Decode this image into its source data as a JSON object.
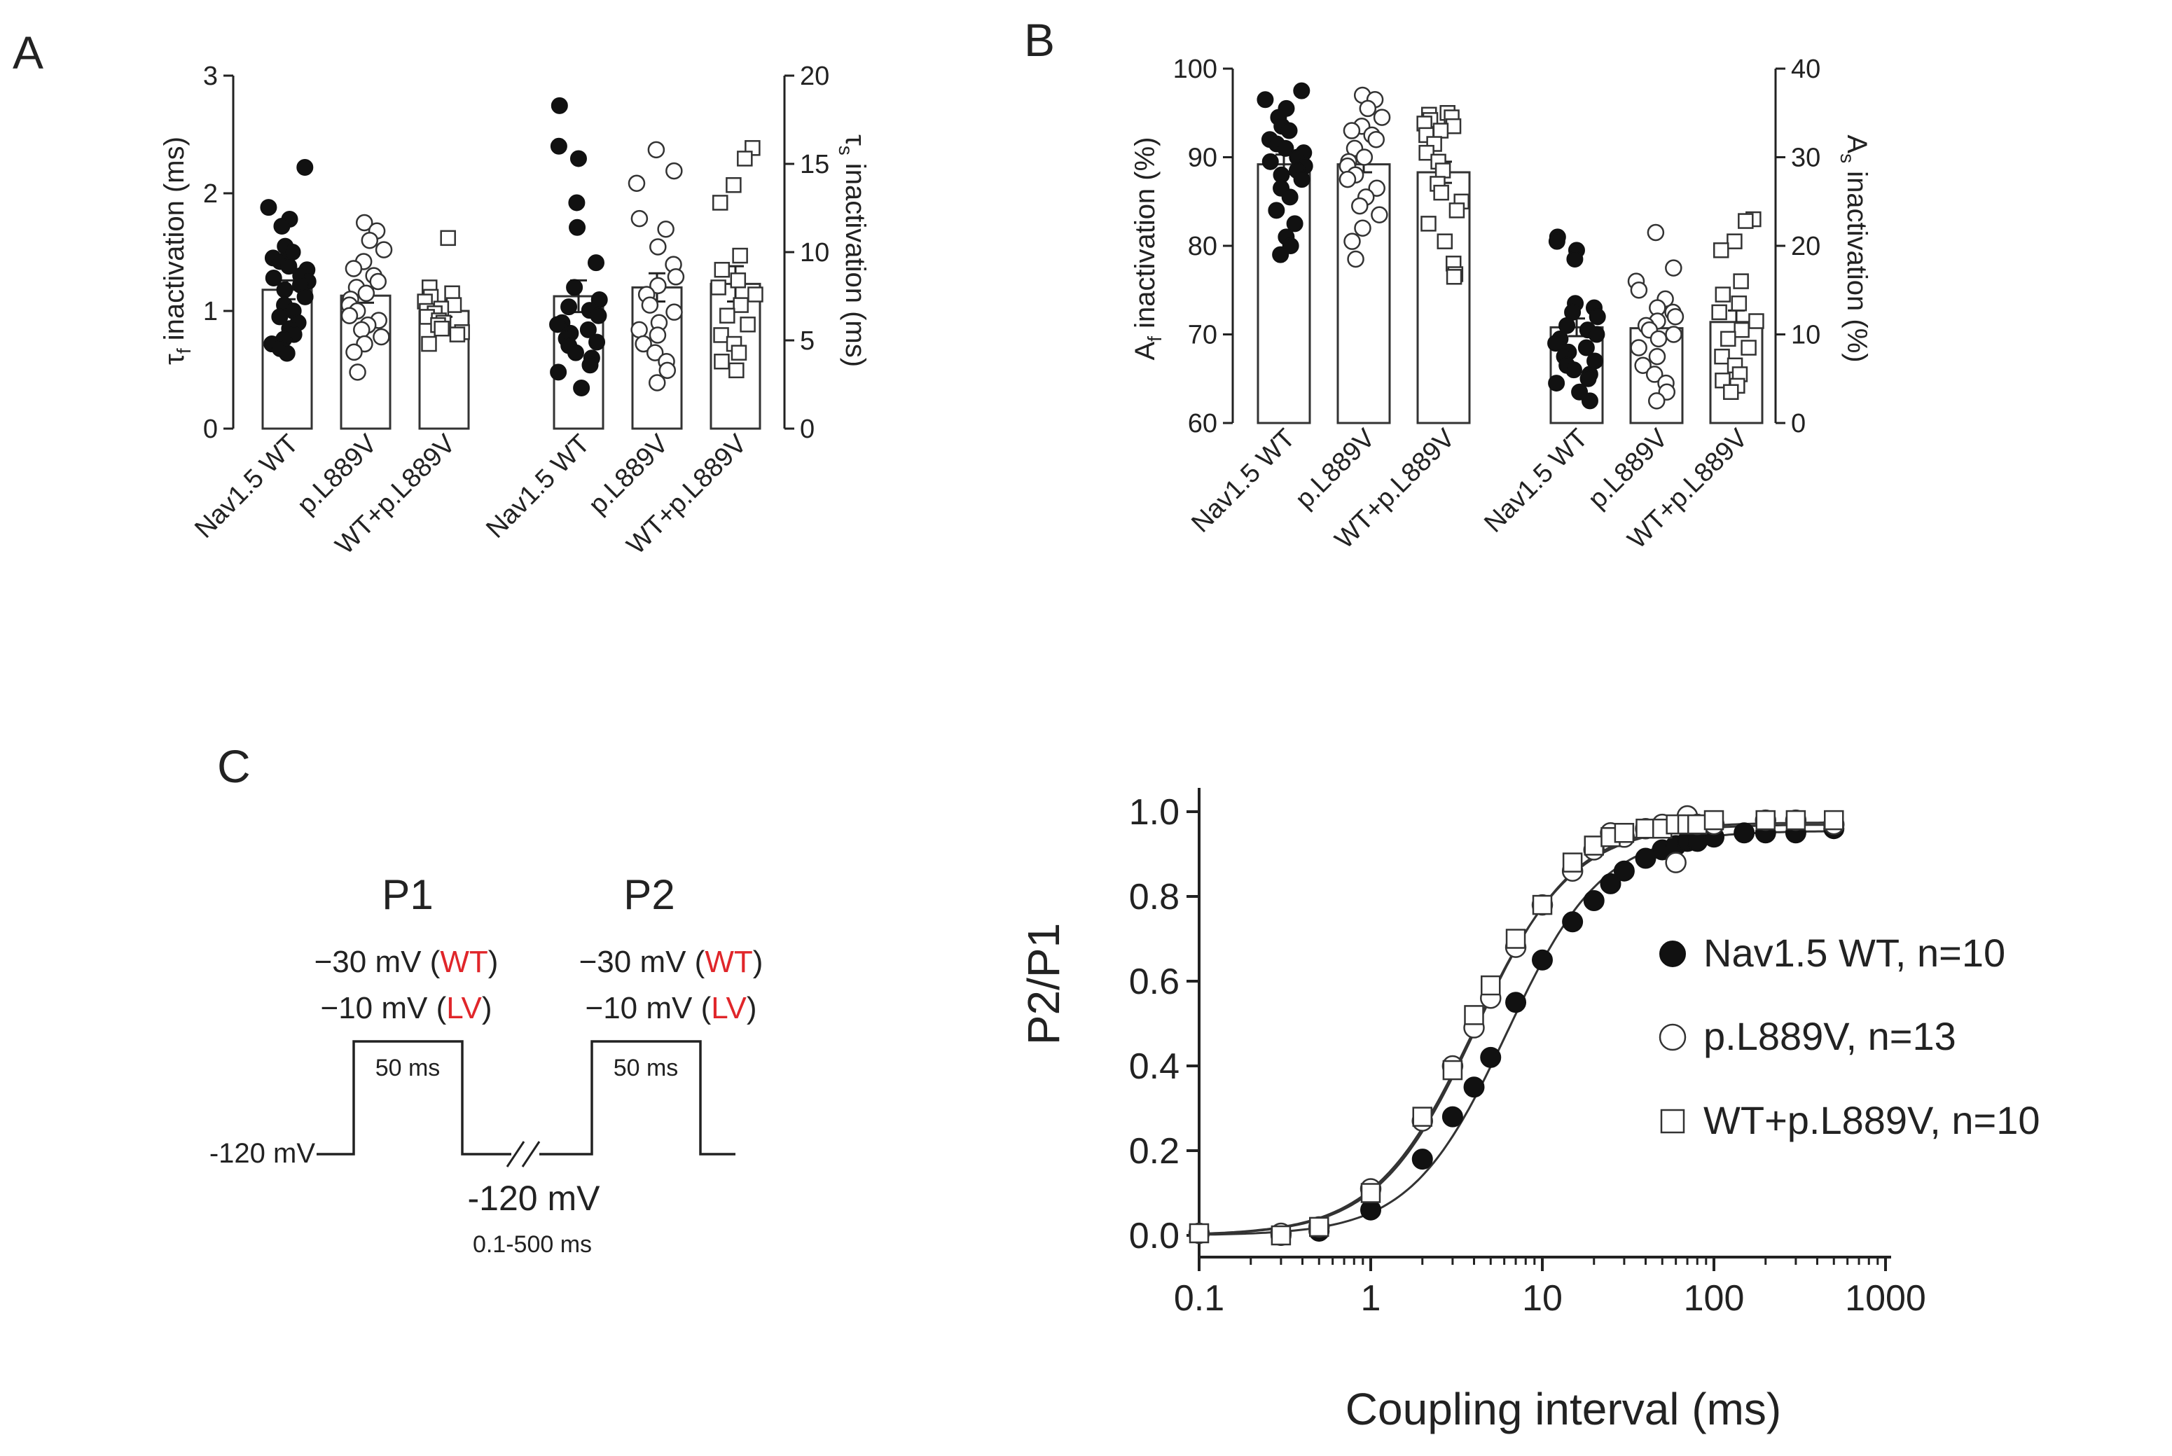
{
  "panels": {
    "A": {
      "letter": "A",
      "left_axis": {
        "label_main": "τ",
        "label_sub": "f",
        "label_rest": " inactivation (ms)",
        "ticks": [
          "0",
          "1",
          "2",
          "3"
        ],
        "range": [
          0,
          3
        ]
      },
      "right_axis": {
        "label_main": "τ",
        "label_sub": "s",
        "label_rest": " inactivation (ms)",
        "ticks": [
          "0",
          "5",
          "10",
          "15",
          "20"
        ],
        "range": [
          0,
          20
        ]
      },
      "categories": [
        "Nav1.5 WT",
        "p.L889V",
        "WT+p.L889V",
        "Nav1.5 WT",
        "p.L889V",
        "WT+p.L889V"
      ]
    },
    "B": {
      "letter": "B",
      "left_axis": {
        "label_main": "A",
        "label_sub": "f",
        "label_rest": " inactivation (%)",
        "ticks": [
          "60",
          "70",
          "80",
          "90",
          "100"
        ],
        "range": [
          60,
          100
        ]
      },
      "right_axis": {
        "label_main": "A",
        "label_sub": "s",
        "label_rest": " inactivation (%)",
        "ticks": [
          "0",
          "10",
          "20",
          "30",
          "40"
        ],
        "range": [
          0,
          40
        ]
      },
      "categories": [
        "Nav1.5 WT",
        "p.L889V",
        "WT+p.L889V",
        "Nav1.5 WT",
        "p.L889V",
        "WT+p.L889V"
      ]
    },
    "C": {
      "letter": "C",
      "protocol": {
        "p1_label": "P1",
        "p2_label": "P2",
        "p1_line1_prefix": "−30 mV (",
        "p1_line1_tag": "WT",
        "p1_line1_suffix": ")",
        "p1_line2_prefix": "−10 mV (",
        "p1_line2_tag": "LV",
        "p1_line2_suffix": ")",
        "p2_line1_prefix": "−30 mV (",
        "p2_line1_tag": "WT",
        "p2_line1_suffix": ")",
        "p2_line2_prefix": "−10 mV (",
        "p2_line2_tag": "LV",
        "p2_line2_suffix": ")",
        "pulse1_duration": "50 ms",
        "pulse2_duration": "50 ms",
        "holding_left": "-120 mV",
        "holding_mid": "-120 mV",
        "interval_range": "0.1-500 ms"
      },
      "plot": {
        "ylabel": "P2/P1",
        "xlabel": "Coupling interval (ms)",
        "yticks": [
          "0.0",
          "0.2",
          "0.4",
          "0.6",
          "0.8",
          "1.0"
        ],
        "xticks": [
          "0.1",
          "1",
          "10",
          "100",
          "1000"
        ],
        "legend": [
          {
            "label": "Nav1.5 WT, n=10",
            "marker": "filled-circle"
          },
          {
            "label": "p.L889V, n=13",
            "marker": "open-circle"
          },
          {
            "label": "WT+p.L889V, n=10",
            "marker": "open-square"
          }
        ]
      }
    }
  },
  "chart_data": [
    {
      "type": "scatter",
      "panel": "A",
      "categories": [
        "Nav1.5 WT",
        "p.L889V",
        "WT+p.L889V",
        "Nav1.5 WT",
        "p.L889V",
        "WT+p.L889V"
      ],
      "ylim_left": [
        0,
        3
      ],
      "ylim_right": [
        0,
        20
      ],
      "series": [
        {
          "category": "Nav1.5 WT",
          "axis": "left",
          "marker": "filled-circle",
          "mean": 1.18,
          "sem": 0.08,
          "values": [
            2.22,
            1.88,
            1.78,
            1.72,
            1.55,
            1.5,
            1.45,
            1.42,
            1.38,
            1.35,
            1.3,
            1.28,
            1.25,
            1.22,
            1.18,
            1.12,
            1.05,
            1.0,
            0.95,
            0.9,
            0.85,
            0.8,
            0.76,
            0.72,
            0.68,
            0.64
          ]
        },
        {
          "category": "p.L889V",
          "axis": "left",
          "marker": "open-circle",
          "mean": 1.13,
          "sem": 0.06,
          "values": [
            1.75,
            1.68,
            1.6,
            1.52,
            1.42,
            1.36,
            1.3,
            1.25,
            1.2,
            1.15,
            1.1,
            1.05,
            1.0,
            0.96,
            0.92,
            0.88,
            0.84,
            0.78,
            0.72,
            0.65,
            0.48
          ]
        },
        {
          "category": "WT+p.L889V",
          "axis": "left",
          "marker": "open-square",
          "mean": 1.0,
          "sem": 0.05,
          "values": [
            1.62,
            1.2,
            1.15,
            1.12,
            1.08,
            1.05,
            1.02,
            1.0,
            0.98,
            0.95,
            0.92,
            0.9,
            0.88,
            0.85,
            0.82,
            0.8,
            0.72
          ]
        },
        {
          "category": "Nav1.5 WT",
          "axis": "right",
          "marker": "filled-circle",
          "mean": 7.5,
          "sem": 0.9,
          "values": [
            18.3,
            16.0,
            15.3,
            12.8,
            11.4,
            9.4,
            8.0,
            7.3,
            6.9,
            6.7,
            6.4,
            6.0,
            5.9,
            5.6,
            5.4,
            5.1,
            4.9,
            4.7,
            4.3,
            4.0,
            3.6,
            3.2,
            2.3
          ]
        },
        {
          "category": "p.L889V",
          "axis": "right",
          "marker": "open-circle",
          "mean": 8.0,
          "sem": 0.8,
          "values": [
            15.8,
            14.6,
            13.9,
            11.9,
            11.3,
            10.3,
            9.3,
            8.6,
            8.1,
            7.6,
            7.0,
            6.6,
            6.0,
            5.6,
            5.3,
            4.8,
            4.3,
            3.8,
            3.3,
            2.6
          ]
        },
        {
          "category": "WT+p.L889V",
          "axis": "right",
          "marker": "open-square",
          "mean": 8.2,
          "sem": 1.0,
          "values": [
            15.9,
            15.3,
            13.8,
            12.8,
            9.8,
            9.0,
            8.4,
            8.0,
            7.6,
            7.0,
            6.4,
            5.9,
            5.3,
            4.8,
            4.3,
            3.8,
            3.3
          ]
        }
      ]
    },
    {
      "type": "scatter",
      "panel": "B",
      "categories": [
        "Nav1.5 WT",
        "p.L889V",
        "WT+p.L889V",
        "Nav1.5 WT",
        "p.L889V",
        "WT+p.L889V"
      ],
      "ylim_left": [
        60,
        100
      ],
      "ylim_right": [
        0,
        40
      ],
      "series": [
        {
          "category": "Nav1.5 WT",
          "axis": "left",
          "marker": "filled-circle",
          "mean": 89.2,
          "sem": 1.1,
          "values": [
            97.5,
            96.5,
            95.5,
            94.5,
            93.5,
            93.0,
            92.0,
            91.5,
            91.0,
            90.5,
            90.0,
            89.5,
            89.0,
            88.5,
            88.0,
            87.5,
            86.5,
            85.5,
            84.0,
            82.5,
            81.0,
            80.0,
            79.0
          ]
        },
        {
          "category": "p.L889V",
          "axis": "left",
          "marker": "open-circle",
          "mean": 89.2,
          "sem": 0.9,
          "values": [
            97.0,
            96.5,
            95.5,
            94.5,
            93.5,
            93.0,
            92.5,
            92.0,
            91.0,
            90.0,
            89.5,
            89.0,
            88.0,
            87.5,
            86.5,
            85.5,
            84.5,
            83.5,
            82.0,
            80.5,
            78.5
          ]
        },
        {
          "category": "WT+p.L889V",
          "axis": "left",
          "marker": "open-square",
          "mean": 88.3,
          "sem": 1.2,
          "values": [
            95.0,
            94.8,
            94.5,
            94.2,
            93.8,
            93.5,
            93.0,
            92.5,
            91.5,
            90.5,
            89.5,
            88.5,
            87.0,
            86.0,
            85.0,
            84.0,
            82.5,
            80.5,
            78.0,
            76.8,
            76.5
          ]
        },
        {
          "category": "Nav1.5 WT",
          "axis": "right",
          "marker": "filled-circle",
          "mean": 10.8,
          "sem": 1.0,
          "values": [
            21.0,
            20.5,
            19.5,
            18.5,
            13.5,
            13.0,
            12.5,
            12.0,
            11.0,
            10.5,
            10.0,
            9.5,
            9.0,
            8.5,
            8.0,
            7.5,
            7.0,
            6.5,
            6.0,
            5.5,
            5.0,
            4.5,
            3.5,
            2.5
          ]
        },
        {
          "category": "p.L889V",
          "axis": "right",
          "marker": "open-circle",
          "mean": 10.7,
          "sem": 0.9,
          "values": [
            21.5,
            17.5,
            16.0,
            15.0,
            14.0,
            13.0,
            12.5,
            12.0,
            11.5,
            11.0,
            10.5,
            10.0,
            9.5,
            8.5,
            7.5,
            6.5,
            5.5,
            4.5,
            3.5,
            2.5
          ]
        },
        {
          "category": "WT+p.L889V",
          "axis": "right",
          "marker": "open-square",
          "mean": 11.4,
          "sem": 1.3,
          "values": [
            23.0,
            22.8,
            20.5,
            19.5,
            16.0,
            14.5,
            13.5,
            12.5,
            11.5,
            10.5,
            9.5,
            8.5,
            7.5,
            6.5,
            5.5,
            4.8,
            4.2,
            3.5
          ]
        }
      ]
    },
    {
      "type": "scatter",
      "panel": "C",
      "title": "",
      "xlabel": "Coupling interval (ms)",
      "ylabel": "P2/P1",
      "xscale": "log",
      "xlim": [
        0.1,
        1000
      ],
      "ylim": [
        0,
        1.0
      ],
      "legend_position": "right",
      "series": [
        {
          "name": "Nav1.5 WT, n=10",
          "marker": "filled-circle",
          "x": [
            0.1,
            0.3,
            0.5,
            1,
            2,
            3,
            4,
            5,
            7,
            10,
            15,
            20,
            25,
            30,
            40,
            50,
            60,
            70,
            80,
            100,
            150,
            200,
            300,
            500
          ],
          "y": [
            0.005,
            0.0,
            0.01,
            0.06,
            0.18,
            0.28,
            0.35,
            0.42,
            0.55,
            0.65,
            0.74,
            0.79,
            0.83,
            0.86,
            0.89,
            0.91,
            0.92,
            0.93,
            0.93,
            0.94,
            0.95,
            0.95,
            0.95,
            0.96
          ]
        },
        {
          "name": "p.L889V, n=13",
          "marker": "open-circle",
          "x": [
            0.1,
            0.3,
            0.5,
            1,
            2,
            3,
            4,
            5,
            7,
            10,
            15,
            20,
            25,
            30,
            40,
            50,
            60,
            70,
            80,
            100,
            200,
            300,
            500
          ],
          "y": [
            0.005,
            0.005,
            0.02,
            0.11,
            0.27,
            0.4,
            0.49,
            0.56,
            0.68,
            0.78,
            0.86,
            0.91,
            0.95,
            0.94,
            0.96,
            0.97,
            0.88,
            0.99,
            0.97,
            0.97,
            0.98,
            0.98,
            0.97
          ]
        },
        {
          "name": "WT+p.L889V, n=10",
          "marker": "open-square",
          "x": [
            0.1,
            0.3,
            0.5,
            1,
            2,
            3,
            4,
            5,
            7,
            10,
            15,
            20,
            25,
            30,
            40,
            50,
            60,
            70,
            80,
            100,
            200,
            300,
            500
          ],
          "y": [
            0.005,
            0.0,
            0.02,
            0.1,
            0.28,
            0.39,
            0.52,
            0.59,
            0.7,
            0.78,
            0.88,
            0.92,
            0.94,
            0.95,
            0.96,
            0.96,
            0.97,
            0.97,
            0.97,
            0.98,
            0.98,
            0.98,
            0.98
          ]
        }
      ]
    }
  ]
}
